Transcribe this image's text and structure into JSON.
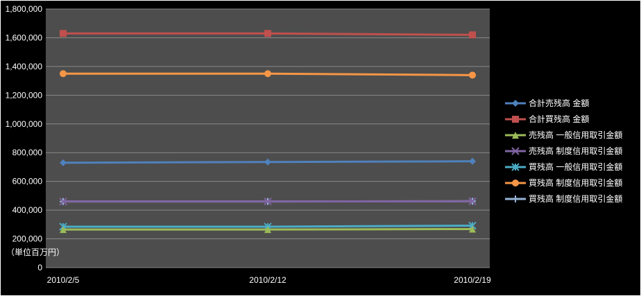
{
  "chart_data": {
    "type": "line",
    "title": "",
    "categories": [
      "2010/2/5",
      "2010/2/12",
      "2010/2/19"
    ],
    "series": [
      {
        "name": "合計売残高 金額",
        "color": "#4F81BD",
        "marker": "diamond",
        "values": [
          730000,
          735000,
          740000
        ]
      },
      {
        "name": "合計買残高 金額",
        "color": "#C0504D",
        "marker": "square",
        "values": [
          1630000,
          1630000,
          1620000
        ]
      },
      {
        "name": "売残高 一般信用取引金額",
        "color": "#9BBB59",
        "marker": "triangle",
        "values": [
          265000,
          265000,
          268000
        ]
      },
      {
        "name": "売残高 制度信用取引金額",
        "color": "#8064A2",
        "marker": "x",
        "values": [
          460000,
          460000,
          462000
        ]
      },
      {
        "name": "買残高 一般信用取引金額",
        "color": "#4BACC6",
        "marker": "asterisk",
        "values": [
          285000,
          285000,
          292000
        ]
      },
      {
        "name": "買残高 制度信用取引金額",
        "color": "#F79646",
        "marker": "circle",
        "values": [
          1350000,
          1350000,
          1340000
        ]
      },
      {
        "name": "買残高 制度信用取引金額",
        "color": "#95B3D7",
        "marker": "plus",
        "values": [
          460000,
          460000,
          462000
        ]
      }
    ],
    "ylim": [
      0,
      1800000
    ],
    "ytick_step": 200000,
    "ytick_labels": [
      "0",
      "200,000",
      "400,000",
      "600,000",
      "800,000",
      "1,000,000",
      "1,200,000",
      "1,400,000",
      "1,600,000",
      "1,800,000"
    ],
    "unit_label": "（単位百万円）",
    "grid": true,
    "legend_position": "right"
  },
  "colors": {
    "background": "#000000",
    "plot_background": "#4d4d4d",
    "gridline": "#898989",
    "text": "#ffffff"
  }
}
